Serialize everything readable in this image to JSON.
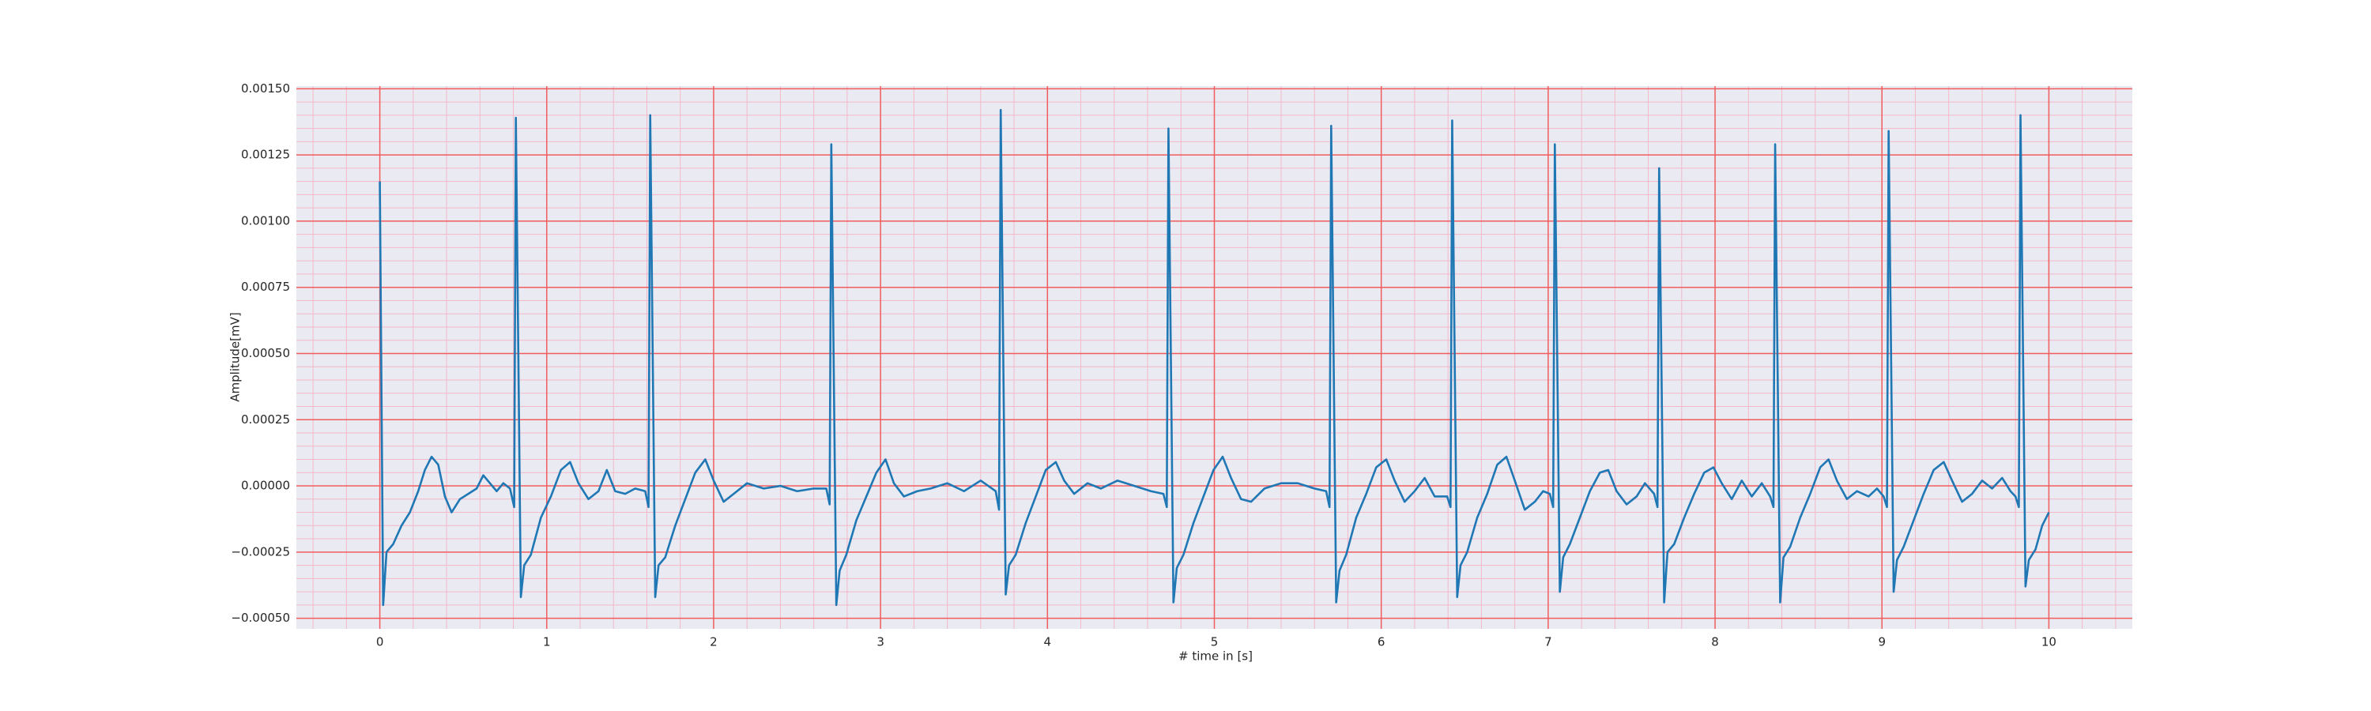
{
  "chart_data": {
    "type": "line",
    "xlabel": "# time in [s]",
    "ylabel": "Amplitude[mV]",
    "xlim": [
      -0.5,
      10.5
    ],
    "ylim": [
      -0.00054,
      0.00151
    ],
    "xticks": [
      0,
      1,
      2,
      3,
      4,
      5,
      6,
      7,
      8,
      9,
      10
    ],
    "yticks": [
      {
        "value": -0.0005,
        "label": "−0.00050"
      },
      {
        "value": -0.00025,
        "label": "−0.00025"
      },
      {
        "value": 0,
        "label": "0.00000"
      },
      {
        "value": 0.00025,
        "label": "0.00025"
      },
      {
        "value": 0.0005,
        "label": "0.00050"
      },
      {
        "value": 0.00075,
        "label": "0.00075"
      },
      {
        "value": 0.001,
        "label": "0.00100"
      },
      {
        "value": 0.00125,
        "label": "0.00125"
      },
      {
        "value": 0.0015,
        "label": "0.00150"
      }
    ],
    "xminorticks": [
      -0.4,
      -0.2,
      0.2,
      0.4,
      0.6,
      0.8,
      1.2,
      1.4,
      1.6,
      1.8,
      2.2,
      2.4,
      2.6,
      2.8,
      3.2,
      3.4,
      3.6,
      3.8,
      4.2,
      4.4,
      4.6,
      4.8,
      5.2,
      5.4,
      5.6,
      5.8,
      6.2,
      6.4,
      6.6,
      6.8,
      7.2,
      7.4,
      7.6,
      7.8,
      8.2,
      8.4,
      8.6,
      8.8,
      9.2,
      9.4,
      9.6,
      9.8,
      10.2,
      10.4
    ],
    "yminorticks": [
      -0.00045,
      -0.0004,
      -0.00035,
      -0.0003,
      -0.0002,
      -0.00015,
      -0.0001,
      -5e-05,
      5e-05,
      0.0001,
      0.00015,
      0.0002,
      0.0003,
      0.00035,
      0.0004,
      0.00045,
      0.00055,
      0.0006,
      0.00065,
      0.0007,
      0.0008,
      0.00085,
      0.0009,
      0.00095,
      0.00105,
      0.0011,
      0.00115,
      0.0012,
      0.0013,
      0.00135,
      0.0014,
      0.00145
    ],
    "grid": true,
    "grid_color": "#f25c5c",
    "minor_grid_color": "#f3b8c8",
    "background": "#eaeaf2",
    "series": [
      {
        "color": "#1f77b4",
        "x": [
          0,
          0.02,
          0.04,
          0.08,
          0.13,
          0.18,
          0.23,
          0.27,
          0.31,
          0.35,
          0.39,
          0.43,
          0.48,
          0.53,
          0.58,
          0.62,
          0.66,
          0.7,
          0.74,
          0.78,
          0.805,
          0.815,
          0.845,
          0.865,
          0.905,
          0.965,
          1.025,
          1.085,
          1.14,
          1.19,
          1.25,
          1.31,
          1.36,
          1.41,
          1.47,
          1.53,
          1.59,
          1.61,
          1.62,
          1.65,
          1.67,
          1.71,
          1.77,
          1.83,
          1.89,
          1.95,
          2.0,
          2.06,
          2.12,
          2.2,
          2.3,
          2.4,
          2.5,
          2.6,
          2.675,
          2.695,
          2.705,
          2.735,
          2.755,
          2.795,
          2.855,
          2.915,
          2.975,
          3.03,
          3.08,
          3.14,
          3.22,
          3.3,
          3.4,
          3.5,
          3.6,
          3.69,
          3.71,
          3.72,
          3.75,
          3.77,
          3.81,
          3.87,
          3.93,
          3.99,
          4.05,
          4.1,
          4.16,
          4.24,
          4.32,
          4.42,
          4.52,
          4.62,
          4.695,
          4.715,
          4.725,
          4.755,
          4.775,
          4.815,
          4.875,
          4.935,
          4.995,
          5.05,
          5.1,
          5.16,
          5.22,
          5.3,
          5.4,
          5.5,
          5.6,
          5.67,
          5.69,
          5.7,
          5.73,
          5.75,
          5.79,
          5.85,
          5.91,
          5.97,
          6.03,
          6.08,
          6.14,
          6.2,
          6.26,
          6.32,
          6.395,
          6.415,
          6.425,
          6.455,
          6.475,
          6.515,
          6.575,
          6.635,
          6.695,
          6.75,
          6.8,
          6.86,
          6.92,
          6.97,
          7.01,
          7.03,
          7.04,
          7.07,
          7.09,
          7.13,
          7.19,
          7.25,
          7.31,
          7.36,
          7.41,
          7.47,
          7.53,
          7.58,
          7.635,
          7.655,
          7.665,
          7.695,
          7.715,
          7.755,
          7.815,
          7.875,
          7.935,
          7.99,
          8.04,
          8.1,
          8.16,
          8.22,
          8.28,
          8.33,
          8.35,
          8.36,
          8.39,
          8.41,
          8.45,
          8.51,
          8.57,
          8.63,
          8.68,
          8.73,
          8.79,
          8.85,
          8.92,
          8.97,
          9.01,
          9.03,
          9.04,
          9.07,
          9.09,
          9.13,
          9.19,
          9.25,
          9.31,
          9.37,
          9.42,
          9.48,
          9.54,
          9.6,
          9.66,
          9.72,
          9.77,
          9.8,
          9.82,
          9.83,
          9.86,
          9.88,
          9.92,
          9.96,
          10.0
        ],
        "values": [
          0.00115,
          -0.00045,
          -0.00025,
          -0.00022,
          -0.00015,
          -0.0001,
          -2e-05,
          6e-05,
          0.00011,
          8e-05,
          -4e-05,
          -0.0001,
          -5e-05,
          -3e-05,
          -1e-05,
          4e-05,
          1e-05,
          -2e-05,
          1e-05,
          -1e-05,
          -8e-05,
          0.00139,
          -0.00042,
          -0.0003,
          -0.00026,
          -0.00012,
          -4e-05,
          6e-05,
          9e-05,
          1e-05,
          -5e-05,
          -2e-05,
          6e-05,
          -2e-05,
          -3e-05,
          -1e-05,
          -2e-05,
          -8e-05,
          0.0014,
          -0.00042,
          -0.0003,
          -0.00027,
          -0.00015,
          -5e-05,
          5e-05,
          0.0001,
          2e-05,
          -6e-05,
          -3e-05,
          1e-05,
          -1e-05,
          0,
          -2e-05,
          -1e-05,
          -1e-05,
          -7e-05,
          0.00129,
          -0.00045,
          -0.00032,
          -0.00026,
          -0.00013,
          -4e-05,
          5e-05,
          0.0001,
          1e-05,
          -4e-05,
          -2e-05,
          -1e-05,
          1e-05,
          -2e-05,
          2e-05,
          -2e-05,
          -9e-05,
          0.00142,
          -0.00041,
          -0.0003,
          -0.00026,
          -0.00014,
          -4e-05,
          6e-05,
          9e-05,
          2e-05,
          -3e-05,
          1e-05,
          -1e-05,
          2e-05,
          0,
          -2e-05,
          -3e-05,
          -8e-05,
          0.00135,
          -0.00044,
          -0.00031,
          -0.00026,
          -0.00014,
          -4e-05,
          6e-05,
          0.00011,
          3e-05,
          -5e-05,
          -6e-05,
          -1e-05,
          1e-05,
          1e-05,
          -1e-05,
          -2e-05,
          -8e-05,
          0.00136,
          -0.00044,
          -0.00032,
          -0.00026,
          -0.00012,
          -3e-05,
          7e-05,
          0.0001,
          2e-05,
          -6e-05,
          -2e-05,
          3e-05,
          -4e-05,
          -4e-05,
          -8e-05,
          0.00138,
          -0.00042,
          -0.0003,
          -0.00025,
          -0.00012,
          -3e-05,
          8e-05,
          0.00011,
          2e-05,
          -9e-05,
          -6e-05,
          -2e-05,
          -3e-05,
          -8e-05,
          0.00129,
          -0.0004,
          -0.00027,
          -0.00022,
          -0.00012,
          -2e-05,
          5e-05,
          6e-05,
          -2e-05,
          -7e-05,
          -4e-05,
          1e-05,
          -3e-05,
          -8e-05,
          0.0012,
          -0.00044,
          -0.00025,
          -0.00022,
          -0.00012,
          -3e-05,
          5e-05,
          7e-05,
          1e-05,
          -5e-05,
          2e-05,
          -4e-05,
          1e-05,
          -4e-05,
          -8e-05,
          0.00129,
          -0.00044,
          -0.00027,
          -0.00023,
          -0.00012,
          -3e-05,
          7e-05,
          0.0001,
          2e-05,
          -5e-05,
          -2e-05,
          -4e-05,
          -1e-05,
          -4e-05,
          -8e-05,
          0.00134,
          -0.0004,
          -0.00028,
          -0.00023,
          -0.00013,
          -3e-05,
          6e-05,
          9e-05,
          2e-05,
          -6e-05,
          -3e-05,
          2e-05,
          -1e-05,
          3e-05,
          -2e-05,
          -4e-05,
          -8e-05,
          0.0014,
          -0.00038,
          -0.00028,
          -0.00024,
          -0.00015,
          -0.0001
        ]
      }
    ]
  }
}
